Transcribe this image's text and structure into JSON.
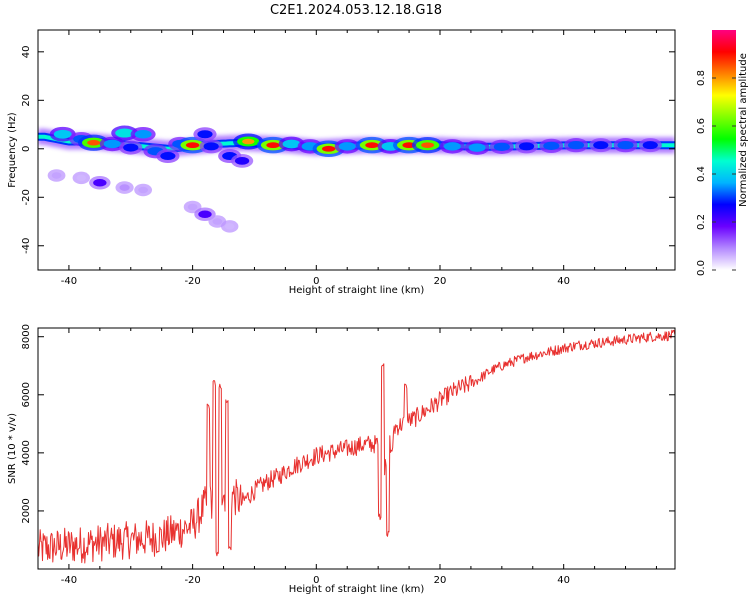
{
  "title": "C2E1.2024.053.12.18.G18",
  "chart_data": [
    {
      "type": "heatmap",
      "xlabel": "Height of straight line (km)",
      "ylabel": "Frequency (Hz)",
      "xlim": [
        -45,
        58
      ],
      "ylim": [
        -50,
        49
      ],
      "xticks": [
        -40,
        -20,
        0,
        20,
        40
      ],
      "yticks": [
        -40,
        -20,
        0,
        20,
        40
      ],
      "colorbar": {
        "label": "Normalized spectral amplitude",
        "range": [
          0,
          1
        ],
        "ticks": [
          "0.0",
          "0.2",
          "0.4",
          "0.6",
          "0.8"
        ],
        "tick_values": [
          0.0,
          0.2,
          0.4,
          0.6,
          0.8
        ],
        "colors": [
          "#ffffff",
          "#b388ff",
          "#6a00ff",
          "#0000ff",
          "#00b4ff",
          "#00ffd0",
          "#00ff00",
          "#80ff00",
          "#ffff00",
          "#ff8000",
          "#ff0000",
          "#ff0080"
        ]
      },
      "blobs": [
        {
          "x": -41,
          "y": 6,
          "amp": 0.55
        },
        {
          "x": -38,
          "y": 4,
          "amp": 0.45
        },
        {
          "x": -36,
          "y": 2.5,
          "amp": 0.85
        },
        {
          "x": -33,
          "y": 2,
          "amp": 0.5
        },
        {
          "x": -31,
          "y": 6.5,
          "amp": 0.6
        },
        {
          "x": -28,
          "y": 6,
          "amp": 0.5
        },
        {
          "x": -30,
          "y": 0.5,
          "amp": 0.4
        },
        {
          "x": -26,
          "y": -1,
          "amp": 0.45
        },
        {
          "x": -24,
          "y": -3,
          "amp": 0.4
        },
        {
          "x": -22,
          "y": 2,
          "amp": 0.45
        },
        {
          "x": -20,
          "y": 1.5,
          "amp": 0.9
        },
        {
          "x": -18,
          "y": 6,
          "amp": 0.4
        },
        {
          "x": -17,
          "y": 1,
          "amp": 0.4
        },
        {
          "x": -14,
          "y": -3,
          "amp": 0.4
        },
        {
          "x": -12,
          "y": -5,
          "amp": 0.35
        },
        {
          "x": -11,
          "y": 3,
          "amp": 0.8
        },
        {
          "x": -7,
          "y": 1.5,
          "amp": 0.9
        },
        {
          "x": -4,
          "y": 2,
          "amp": 0.55
        },
        {
          "x": -1,
          "y": 1,
          "amp": 0.5
        },
        {
          "x": 2,
          "y": 0,
          "amp": 0.9
        },
        {
          "x": 5,
          "y": 1,
          "amp": 0.5
        },
        {
          "x": 9,
          "y": 1.5,
          "amp": 0.9
        },
        {
          "x": 12,
          "y": 1,
          "amp": 0.55
        },
        {
          "x": 15,
          "y": 1.5,
          "amp": 0.9
        },
        {
          "x": 18,
          "y": 1.5,
          "amp": 0.85
        },
        {
          "x": 22,
          "y": 1,
          "amp": 0.5
        },
        {
          "x": 26,
          "y": 0.5,
          "amp": 0.5
        },
        {
          "x": 30,
          "y": 0.8,
          "amp": 0.45
        },
        {
          "x": 34,
          "y": 1,
          "amp": 0.4
        },
        {
          "x": 38,
          "y": 1.2,
          "amp": 0.45
        },
        {
          "x": 42,
          "y": 1.5,
          "amp": 0.45
        },
        {
          "x": 46,
          "y": 1.5,
          "amp": 0.4
        },
        {
          "x": 50,
          "y": 1.5,
          "amp": 0.45
        },
        {
          "x": 54,
          "y": 1.5,
          "amp": 0.4
        },
        {
          "x": -42,
          "y": -11,
          "amp": 0.1
        },
        {
          "x": -38,
          "y": -12,
          "amp": 0.08
        },
        {
          "x": -35,
          "y": -14,
          "amp": 0.3
        },
        {
          "x": -31,
          "y": -16,
          "amp": 0.12
        },
        {
          "x": -28,
          "y": -17,
          "amp": 0.1
        },
        {
          "x": -20,
          "y": -24,
          "amp": 0.1
        },
        {
          "x": -18,
          "y": -27,
          "amp": 0.3
        },
        {
          "x": -16,
          "y": -30,
          "amp": 0.1
        },
        {
          "x": -14,
          "y": -32,
          "amp": 0.08
        }
      ],
      "ridge": {
        "x": [
          -44,
          -40,
          -36,
          -32,
          -28,
          -24,
          -20,
          -16,
          -12,
          -8,
          -4,
          0,
          4,
          8,
          12,
          16,
          20,
          24,
          28,
          32,
          36,
          40,
          44,
          48,
          52,
          58
        ],
        "y": [
          5,
          3,
          3,
          2,
          1,
          0,
          1,
          2,
          2.5,
          2,
          1.5,
          0.5,
          1,
          1.5,
          1,
          1.5,
          1.5,
          1,
          0.8,
          1,
          1.2,
          1.4,
          1.5,
          1.5,
          1.5,
          1.5
        ]
      }
    },
    {
      "type": "line",
      "xlabel": "Height of straight line (km)",
      "ylabel": "SNR (10 * v/v)",
      "xlim": [
        -45,
        58
      ],
      "ylim": [
        0,
        8300
      ],
      "xticks": [
        -40,
        -20,
        0,
        20,
        40
      ],
      "yticks": [
        2000,
        4000,
        6000,
        8000
      ],
      "color": "#e8312f",
      "trend": {
        "x": [
          -45,
          -40,
          -35,
          -30,
          -25,
          -20,
          -18,
          -16,
          -14,
          -12,
          -10,
          -8,
          -6,
          -4,
          -2,
          0,
          2,
          4,
          6,
          8,
          10,
          11,
          12,
          14,
          16,
          18,
          20,
          22,
          24,
          26,
          28,
          30,
          34,
          38,
          42,
          46,
          50,
          54,
          58
        ],
        "y": [
          700,
          800,
          900,
          1000,
          1100,
          1500,
          2200,
          2500,
          2600,
          2300,
          2700,
          3000,
          3200,
          3500,
          3700,
          3900,
          4000,
          4100,
          4200,
          4300,
          4300,
          3500,
          4800,
          5000,
          5200,
          5500,
          5800,
          6100,
          6300,
          6500,
          6800,
          7000,
          7300,
          7500,
          7700,
          7800,
          7900,
          8000,
          8050
        ]
      },
      "spikes": [
        {
          "x": -17.5,
          "y": 5600
        },
        {
          "x": -16.5,
          "y": 6400
        },
        {
          "x": -15.5,
          "y": 6300
        },
        {
          "x": -14.5,
          "y": 5800
        },
        {
          "x": -16,
          "y": 500
        },
        {
          "x": -14,
          "y": 700
        },
        {
          "x": 10.7,
          "y": 7000
        },
        {
          "x": 10.3,
          "y": 1800
        },
        {
          "x": 11.6,
          "y": 1200
        },
        {
          "x": 12.2,
          "y": 4100
        },
        {
          "x": 14.5,
          "y": 6300
        }
      ]
    }
  ]
}
